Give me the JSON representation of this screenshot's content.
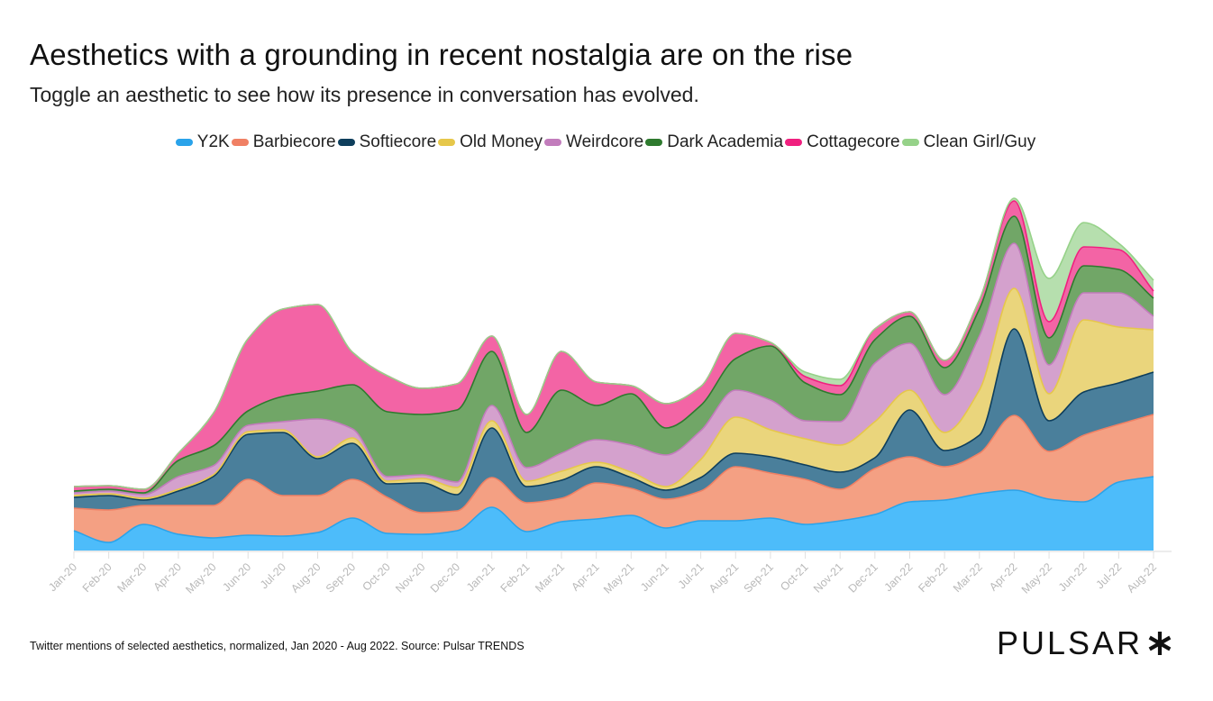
{
  "header": {
    "title": "Aesthetics with a grounding in recent nostalgia are on the rise",
    "subtitle": "Toggle an aesthetic to see how its presence in conversation has evolved."
  },
  "footer": {
    "source": "Twitter mentions of selected aesthetics, normalized, Jan 2020 - Aug 2022. Source: Pulsar TRENDS",
    "logo": "PULSAR"
  },
  "chart_data": {
    "type": "area",
    "stacked": true,
    "legend_position": "top-center",
    "grid": false,
    "categories": [
      "Jan-20",
      "Feb-20",
      "Mar-20",
      "Apr-20",
      "May-20",
      "Jun-20",
      "Jul-20",
      "Aug-20",
      "Sep-20",
      "Oct-20",
      "Nov-20",
      "Dec-20",
      "Jan-21",
      "Feb-21",
      "Mar-21",
      "Apr-21",
      "May-21",
      "Jun-21",
      "Jul-21",
      "Aug-21",
      "Sep-21",
      "Oct-21",
      "Nov-21",
      "Dec-21",
      "Jan-22",
      "Feb-22",
      "Mar-22",
      "Apr-22",
      "May-22",
      "Jun-22",
      "Jul-22",
      "Aug-22"
    ],
    "series": [
      {
        "name": "Y2K",
        "color": "#4dbcfa",
        "values": [
          22,
          9,
          29,
          18,
          14,
          17,
          16,
          20,
          36,
          19,
          18,
          22,
          48,
          21,
          32,
          35,
          39,
          25,
          33,
          33,
          36,
          29,
          33,
          40,
          54,
          56,
          63,
          67,
          57,
          54,
          76,
          82
        ]
      },
      {
        "name": "Barbiecore",
        "color": "#f4a083",
        "values": [
          25,
          36,
          21,
          32,
          36,
          62,
          45,
          41,
          43,
          40,
          24,
          22,
          33,
          32,
          26,
          40,
          30,
          32,
          33,
          60,
          50,
          50,
          35,
          51,
          50,
          37,
          45,
          83,
          53,
          74,
          64,
          69
        ]
      },
      {
        "name": "Softiecore",
        "color": "#4a7f9b",
        "values": [
          12,
          16,
          6,
          16,
          32,
          50,
          70,
          41,
          40,
          15,
          33,
          18,
          55,
          18,
          20,
          18,
          12,
          10,
          15,
          15,
          18,
          16,
          19,
          12,
          52,
          18,
          20,
          96,
          34,
          48,
          46,
          47
        ]
      },
      {
        "name": "Old Money",
        "color": "#ead57c",
        "values": [
          2,
          2,
          2,
          2,
          2,
          3,
          3,
          2,
          6,
          3,
          5,
          8,
          8,
          6,
          10,
          5,
          6,
          4,
          20,
          40,
          30,
          29,
          30,
          40,
          22,
          20,
          50,
          45,
          30,
          80,
          62,
          47
        ]
      },
      {
        "name": "Weirdcore",
        "color": "#d4a1cd",
        "values": [
          3,
          3,
          4,
          14,
          10,
          7,
          9,
          42,
          10,
          5,
          4,
          6,
          17,
          15,
          20,
          25,
          30,
          35,
          32,
          30,
          33,
          20,
          26,
          65,
          52,
          42,
          60,
          50,
          32,
          30,
          38,
          15
        ]
      },
      {
        "name": "Dark Academia",
        "color": "#71a667",
        "values": [
          2,
          2,
          2,
          18,
          22,
          16,
          28,
          31,
          49,
          72,
          67,
          80,
          60,
          39,
          70,
          38,
          57,
          30,
          28,
          35,
          60,
          42,
          30,
          26,
          30,
          30,
          30,
          30,
          30,
          30,
          26,
          20
        ]
      },
      {
        "name": "Cottagecore",
        "color": "#f364a5",
        "values": [
          5,
          4,
          4,
          8,
          36,
          80,
          97,
          96,
          36,
          40,
          29,
          29,
          17,
          20,
          43,
          26,
          9,
          27,
          21,
          28,
          4,
          7,
          10,
          12,
          5,
          8,
          10,
          17,
          18,
          21,
          22,
          8
        ]
      },
      {
        "name": "Clean Girl/Guy",
        "color": "#b6dfae",
        "values": [
          0,
          0,
          0,
          0,
          0,
          0,
          0,
          0,
          0,
          0,
          0,
          0,
          0,
          0,
          0,
          0,
          0,
          0,
          0,
          0,
          0,
          5,
          7,
          0,
          0,
          0,
          0,
          3,
          48,
          27,
          7,
          12
        ]
      }
    ],
    "series_stroke_colors": {
      "Y2K": "#2aa3ea",
      "Barbiecore": "#f08064",
      "Softiecore": "#0e3e5c",
      "Old Money": "#e6c74a",
      "Weirdcore": "#c27cbc",
      "Dark Academia": "#2e7a2e",
      "Cottagecore": "#f0207f",
      "Clean Girl/Guy": "#96d289"
    },
    "ylim": [
      0,
      400
    ]
  }
}
